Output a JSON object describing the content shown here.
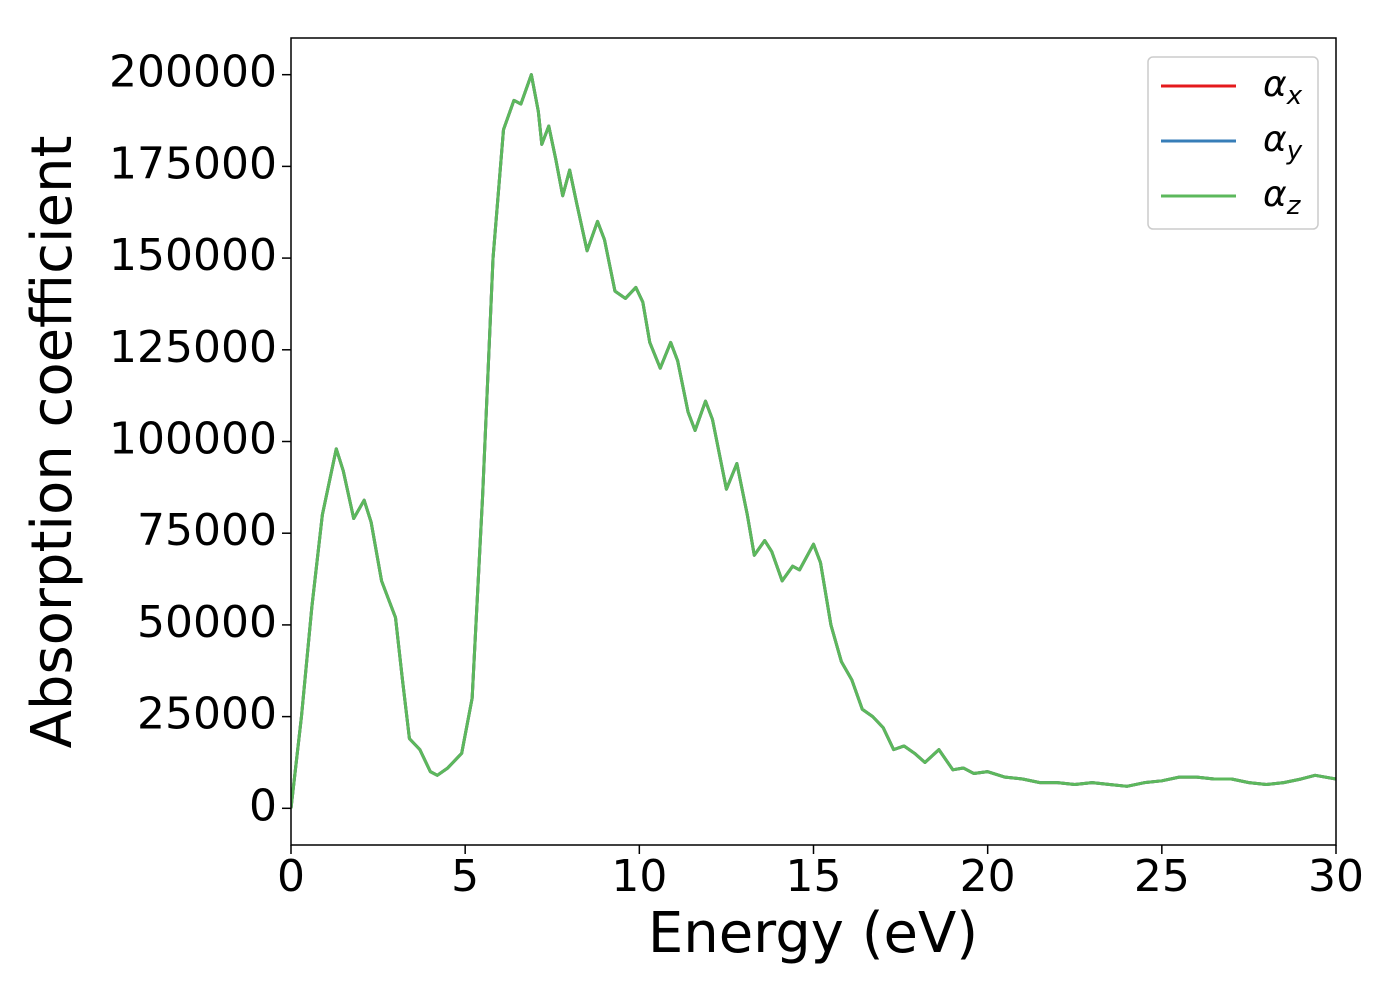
{
  "chart_data": {
    "type": "line",
    "xlabel": "Energy (eV)",
    "ylabel": "Absorption coefficient",
    "x": [
      0,
      0.3,
      0.6,
      0.9,
      1.3,
      1.5,
      1.8,
      2.1,
      2.3,
      2.6,
      2.8,
      3.0,
      3.2,
      3.4,
      3.7,
      4.0,
      4.2,
      4.5,
      4.9,
      5.2,
      5.5,
      5.8,
      6.1,
      6.4,
      6.6,
      6.9,
      7.1,
      7.2,
      7.4,
      7.6,
      7.8,
      8.0,
      8.2,
      8.5,
      8.8,
      9.0,
      9.3,
      9.6,
      9.9,
      10.1,
      10.3,
      10.6,
      10.9,
      11.1,
      11.4,
      11.6,
      11.9,
      12.1,
      12.5,
      12.8,
      13.1,
      13.3,
      13.6,
      13.8,
      14.1,
      14.4,
      14.6,
      15.0,
      15.2,
      15.5,
      15.8,
      16.1,
      16.4,
      16.7,
      17.0,
      17.3,
      17.6,
      17.9,
      18.2,
      18.6,
      19.0,
      19.3,
      19.6,
      20.0,
      20.5,
      21.0,
      21.5,
      22.0,
      22.5,
      23.0,
      23.5,
      24.0,
      24.5,
      25.0,
      25.5,
      26.0,
      26.5,
      27.0,
      27.5,
      28.0,
      28.5,
      29.0,
      29.4,
      30.0
    ],
    "series": [
      {
        "name": "αx",
        "color": "#e41a1c",
        "values": [
          0,
          25000,
          55000,
          80000,
          98000,
          92000,
          79000,
          84000,
          78000,
          62000,
          57000,
          52000,
          35000,
          19000,
          16000,
          10000,
          9000,
          11000,
          15000,
          30000,
          85000,
          150000,
          185000,
          193000,
          192000,
          200000,
          190000,
          181000,
          186000,
          177000,
          167000,
          174000,
          165000,
          152000,
          160000,
          155000,
          141000,
          139000,
          142000,
          138000,
          127000,
          120000,
          127000,
          122000,
          108000,
          103000,
          111000,
          106000,
          87000,
          94000,
          80000,
          69000,
          73000,
          70000,
          62000,
          66000,
          65000,
          72000,
          67000,
          50000,
          40000,
          35000,
          27000,
          25000,
          22000,
          16000,
          17000,
          15000,
          12500,
          16000,
          10500,
          11000,
          9500,
          10000,
          8500,
          8000,
          7000,
          7000,
          6500,
          7000,
          6500,
          6000,
          7000,
          7500,
          8500,
          8500,
          8000,
          8000,
          7000,
          6500,
          7000,
          8000,
          9000,
          8000
        ]
      },
      {
        "name": "αy",
        "color": "#377eb8",
        "values": [
          0,
          25000,
          55000,
          80000,
          98000,
          92000,
          79000,
          84000,
          78000,
          62000,
          57000,
          52000,
          35000,
          19000,
          16000,
          10000,
          9000,
          11000,
          15000,
          30000,
          85000,
          150000,
          185000,
          193000,
          192000,
          200000,
          190000,
          181000,
          186000,
          177000,
          167000,
          174000,
          165000,
          152000,
          160000,
          155000,
          141000,
          139000,
          142000,
          138000,
          127000,
          120000,
          127000,
          122000,
          108000,
          103000,
          111000,
          106000,
          87000,
          94000,
          80000,
          69000,
          73000,
          70000,
          62000,
          66000,
          65000,
          72000,
          67000,
          50000,
          40000,
          35000,
          27000,
          25000,
          22000,
          16000,
          17000,
          15000,
          12500,
          16000,
          10500,
          11000,
          9500,
          10000,
          8500,
          8000,
          7000,
          7000,
          6500,
          7000,
          6500,
          6000,
          7000,
          7500,
          8500,
          8500,
          8000,
          8000,
          7000,
          6500,
          7000,
          8000,
          9000,
          8000
        ]
      },
      {
        "name": "αz",
        "color": "#5cb85c",
        "values": [
          0,
          25000,
          55000,
          80000,
          98000,
          92000,
          79000,
          84000,
          78000,
          62000,
          57000,
          52000,
          35000,
          19000,
          16000,
          10000,
          9000,
          11000,
          15000,
          30000,
          85000,
          150000,
          185000,
          193000,
          192000,
          200000,
          190000,
          181000,
          186000,
          177000,
          167000,
          174000,
          165000,
          152000,
          160000,
          155000,
          141000,
          139000,
          142000,
          138000,
          127000,
          120000,
          127000,
          122000,
          108000,
          103000,
          111000,
          106000,
          87000,
          94000,
          80000,
          69000,
          73000,
          70000,
          62000,
          66000,
          65000,
          72000,
          67000,
          50000,
          40000,
          35000,
          27000,
          25000,
          22000,
          16000,
          17000,
          15000,
          12500,
          16000,
          10500,
          11000,
          9500,
          10000,
          8500,
          8000,
          7000,
          7000,
          6500,
          7000,
          6500,
          6000,
          7000,
          7500,
          8500,
          8500,
          8000,
          8000,
          7000,
          6500,
          7000,
          8000,
          9000,
          8000
        ]
      }
    ],
    "xlim": [
      0,
      30
    ],
    "xticks": [
      0,
      5,
      10,
      15,
      20,
      25,
      30
    ],
    "ylim": [
      -10000,
      210000
    ],
    "yticks": [
      0,
      25000,
      50000,
      75000,
      100000,
      125000,
      150000,
      175000,
      200000
    ],
    "grid": false,
    "legend": "upper right"
  }
}
